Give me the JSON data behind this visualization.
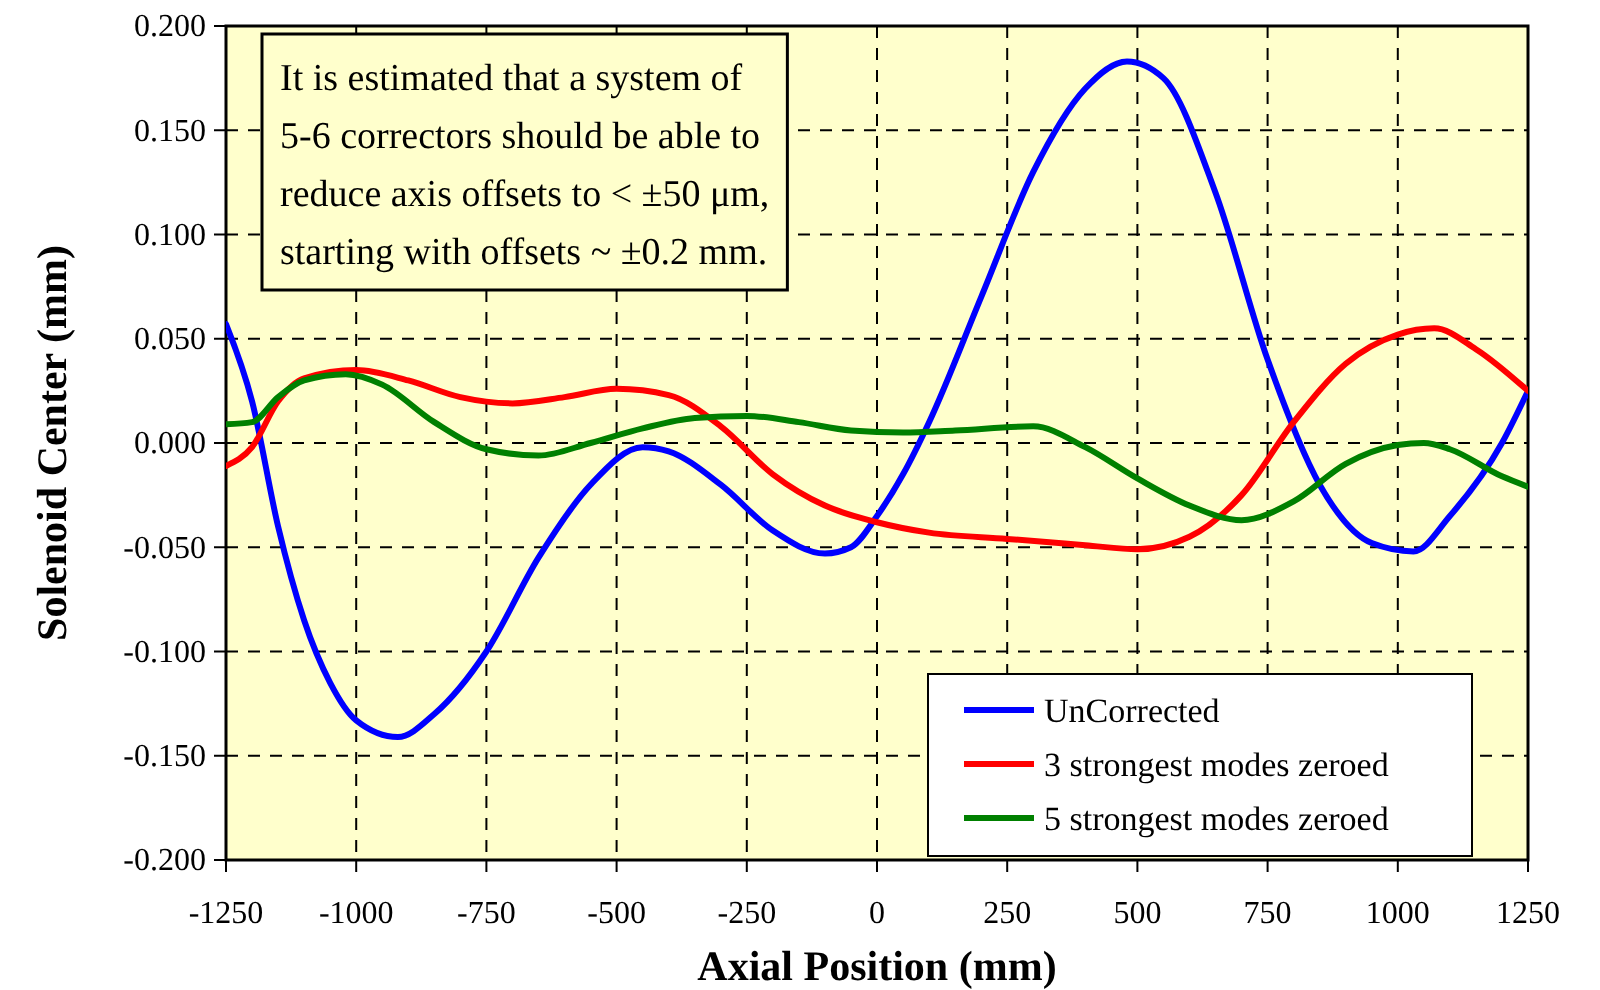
{
  "chart_data": {
    "type": "line",
    "xlabel": "Axial Position (mm)",
    "ylabel": "Solenoid Center (mm)",
    "annotations": [
      "It is estimated that a system of\n5-6 correctors should be able to\nreduce axis offsets to < ±50 μm,\nstarting with offsets ~ ±0.2 mm."
    ],
    "xlim": [
      -1250,
      1250
    ],
    "xticks": [
      -1250,
      -1000,
      -750,
      -500,
      -250,
      0,
      250,
      500,
      750,
      1000,
      1250
    ],
    "ylim": [
      -0.2,
      0.2
    ],
    "yticks": [
      {
        "value": -0.2,
        "label": "-0.200"
      },
      {
        "value": -0.15,
        "label": "-0.150"
      },
      {
        "value": -0.1,
        "label": "-0.100"
      },
      {
        "value": -0.05,
        "label": "-0.050"
      },
      {
        "value": 0,
        "label": "0.000"
      },
      {
        "value": 0.05,
        "label": "0.050"
      },
      {
        "value": 0.1,
        "label": "0.100"
      },
      {
        "value": 0.15,
        "label": "0.150"
      },
      {
        "value": 0.2,
        "label": "0.200"
      }
    ],
    "grid": true,
    "legend": "bottom right",
    "line_style": "solid",
    "marker": "none",
    "series": [
      {
        "name": "UnCorrected",
        "color": "#0000ff",
        "x": [
          -1250,
          -1200,
          -1150,
          -1100,
          -1050,
          -1000,
          -920,
          -850,
          -750,
          -650,
          -550,
          -450,
          -400,
          -300,
          -200,
          -100,
          -50,
          0,
          50,
          100,
          200,
          300,
          400,
          480,
          550,
          650,
          750,
          850,
          950,
          1030,
          1100,
          1200,
          1250
        ],
        "values": [
          0.057,
          0.02,
          -0.04,
          -0.085,
          -0.115,
          -0.133,
          -0.141,
          -0.13,
          -0.1,
          -0.055,
          -0.02,
          -0.002,
          -0.004,
          -0.02,
          -0.042,
          -0.053,
          -0.05,
          -0.035,
          -0.015,
          0.01,
          0.07,
          0.13,
          0.17,
          0.183,
          0.175,
          0.12,
          0.04,
          -0.02,
          -0.048,
          -0.052,
          -0.035,
          0.0,
          0.025
        ]
      },
      {
        "name": "3 strongest modes zeroed",
        "color": "#ff0000",
        "x": [
          -1250,
          -1200,
          -1150,
          -1100,
          -1000,
          -900,
          -800,
          -700,
          -600,
          -500,
          -400,
          -300,
          -200,
          -100,
          0,
          100,
          250,
          400,
          500,
          600,
          700,
          800,
          900,
          1000,
          1070,
          1150,
          1250
        ],
        "values": [
          -0.011,
          -0.002,
          0.02,
          0.031,
          0.035,
          0.03,
          0.022,
          0.019,
          0.022,
          0.026,
          0.023,
          0.008,
          -0.015,
          -0.03,
          -0.038,
          -0.043,
          -0.046,
          -0.049,
          -0.051,
          -0.045,
          -0.025,
          0.01,
          0.038,
          0.052,
          0.055,
          0.045,
          0.025
        ]
      },
      {
        "name": "5 strongest modes zeroed",
        "color": "#008000",
        "x": [
          -1250,
          -1200,
          -1150,
          -1100,
          -1020,
          -950,
          -850,
          -750,
          -650,
          -550,
          -450,
          -350,
          -250,
          -150,
          -50,
          50,
          150,
          300,
          400,
          500,
          600,
          700,
          800,
          900,
          1000,
          1050,
          1100,
          1200,
          1250
        ],
        "values": [
          0.009,
          0.01,
          0.022,
          0.03,
          0.033,
          0.028,
          0.01,
          -0.003,
          -0.006,
          0.0,
          0.007,
          0.012,
          0.013,
          0.01,
          0.006,
          0.005,
          0.006,
          0.008,
          -0.002,
          -0.017,
          -0.03,
          -0.037,
          -0.028,
          -0.01,
          -0.001,
          0.0,
          -0.003,
          -0.016,
          -0.021
        ]
      }
    ]
  }
}
